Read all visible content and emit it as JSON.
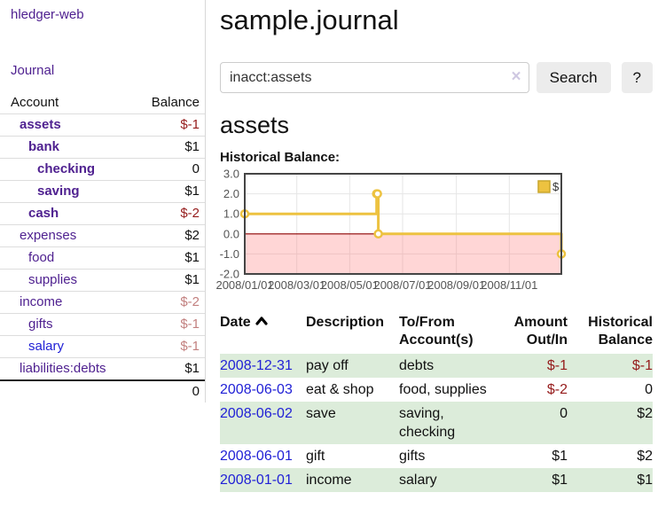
{
  "colors": {
    "purple": "#4f2190",
    "blue": "#2121d6",
    "negative_dark": "#951b1b",
    "negative_light": "#c2807f",
    "row_green": "#dcecda",
    "series_yellow": "#edc240",
    "zero_line": "#8b0000",
    "negative_region": "#f9dada"
  },
  "sidebar": {
    "brand": "hledger-web",
    "nav": {
      "journal_label": "Journal"
    },
    "accounts_table": {
      "headers": {
        "account": "Account",
        "balance": "Balance"
      },
      "rows": [
        {
          "account": "assets",
          "indent": 1,
          "bold": true,
          "link_color": "purple",
          "balance": "$-1",
          "balance_style": "neg-dark"
        },
        {
          "account": "bank",
          "indent": 2,
          "bold": true,
          "link_color": "purple",
          "balance": "$1",
          "balance_style": "pos"
        },
        {
          "account": "checking",
          "indent": 3,
          "bold": true,
          "link_color": "purple",
          "balance": "0",
          "balance_style": "pos"
        },
        {
          "account": "saving",
          "indent": 3,
          "bold": true,
          "link_color": "purple",
          "balance": "$1",
          "balance_style": "pos"
        },
        {
          "account": "cash",
          "indent": 2,
          "bold": true,
          "link_color": "purple",
          "balance": "$-2",
          "balance_style": "neg-dark"
        },
        {
          "account": "expenses",
          "indent": 1,
          "bold": false,
          "link_color": "purple",
          "balance": "$2",
          "balance_style": "pos"
        },
        {
          "account": "food",
          "indent": 2,
          "bold": false,
          "link_color": "purple",
          "balance": "$1",
          "balance_style": "pos"
        },
        {
          "account": "supplies",
          "indent": 2,
          "bold": false,
          "link_color": "purple",
          "balance": "$1",
          "balance_style": "pos"
        },
        {
          "account": "income",
          "indent": 1,
          "bold": false,
          "link_color": "purple",
          "balance": "$-2",
          "balance_style": "neg-light"
        },
        {
          "account": "gifts",
          "indent": 2,
          "bold": false,
          "link_color": "purple",
          "balance": "$-1",
          "balance_style": "neg-light"
        },
        {
          "account": "salary",
          "indent": 2,
          "bold": false,
          "link_color": "blue",
          "balance": "$-1",
          "balance_style": "neg-light"
        },
        {
          "account": "liabilities:debts",
          "indent": 1,
          "bold": false,
          "link_color": "purple",
          "balance": "$1",
          "balance_style": "pos"
        }
      ],
      "total": "0"
    }
  },
  "header": {
    "title": "sample.journal"
  },
  "search": {
    "value": "inacct:assets",
    "clear_icon": "×",
    "button_label": "Search",
    "help_label": "?"
  },
  "register": {
    "heading": "assets",
    "chart_label": "Historical Balance:"
  },
  "chart_data": {
    "type": "line",
    "variant": "step",
    "title": "Historical Balance:",
    "legend": [
      {
        "label": "$",
        "color": "#edc240"
      }
    ],
    "legend_position": "top-right",
    "grid": true,
    "negative_region": true,
    "xrange": [
      "2008-01-01",
      "2008-12-31"
    ],
    "ylim": [
      -2,
      3
    ],
    "yticks": [
      3.0,
      2.0,
      1.0,
      0.0,
      -1.0,
      -2.0
    ],
    "xticks": [
      {
        "date": "2008-01-01",
        "label": "2008/01/01"
      },
      {
        "date": "2008-03-01",
        "label": "2008/03/01"
      },
      {
        "date": "2008-05-01",
        "label": "2008/05/01"
      },
      {
        "date": "2008-07-01",
        "label": "2008/07/01"
      },
      {
        "date": "2008-09-01",
        "label": "2008/09/01"
      },
      {
        "date": "2008-11-01",
        "label": "2008/11/01"
      }
    ],
    "series": [
      {
        "name": "$",
        "color": "#edc240",
        "points": [
          {
            "date": "2008-01-01",
            "value": 1
          },
          {
            "date": "2008-06-01",
            "value": 2
          },
          {
            "date": "2008-06-02",
            "value": 2
          },
          {
            "date": "2008-06-03",
            "value": 0
          },
          {
            "date": "2008-12-31",
            "value": -1
          }
        ]
      }
    ]
  },
  "journal_table": {
    "columns": [
      {
        "id": "date",
        "label": "Date",
        "align": "left",
        "sortable": true
      },
      {
        "id": "desc",
        "label": "Description",
        "align": "left"
      },
      {
        "id": "accts",
        "label": "To/From Account(s)",
        "align": "left"
      },
      {
        "id": "amount",
        "label": "Amount Out/In",
        "align": "right"
      },
      {
        "id": "balance",
        "label": "Historical Balance",
        "align": "right"
      }
    ],
    "rows": [
      {
        "date": "2008-12-31",
        "description": "pay off",
        "accounts": "debts",
        "amount": "$-1",
        "amount_negative": true,
        "balance": "$-1",
        "balance_negative": true
      },
      {
        "date": "2008-06-03",
        "description": "eat & shop",
        "accounts": "food, supplies",
        "amount": "$-2",
        "amount_negative": true,
        "balance": "0",
        "balance_negative": false
      },
      {
        "date": "2008-06-02",
        "description": "save",
        "accounts": "saving, checking",
        "amount": "0",
        "amount_negative": false,
        "balance": "$2",
        "balance_negative": false
      },
      {
        "date": "2008-06-01",
        "description": "gift",
        "accounts": "gifts",
        "amount": "$1",
        "amount_negative": false,
        "balance": "$2",
        "balance_negative": false
      },
      {
        "date": "2008-01-01",
        "description": "income",
        "accounts": "salary",
        "amount": "$1",
        "amount_negative": false,
        "balance": "$1",
        "balance_negative": false
      }
    ]
  }
}
